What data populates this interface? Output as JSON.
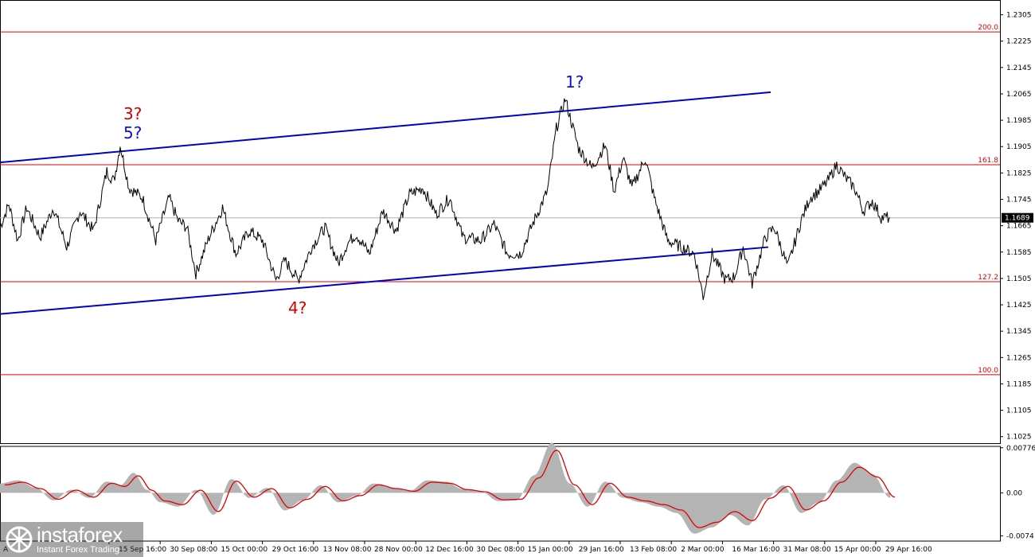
{
  "chart_data": [
    {
      "type": "line",
      "panel": "price",
      "price_axis": {
        "ticks": [
          "1.2305",
          "1.2225",
          "1.2145",
          "1.2065",
          "1.1985",
          "1.1905",
          "1.1825",
          "1.1745",
          "1.1665",
          "1.1585",
          "1.1505",
          "1.1425",
          "1.1345",
          "1.1265",
          "1.1185",
          "1.1105",
          "1.1025"
        ],
        "range": [
          1.1005,
          1.2345
        ]
      },
      "current_price": {
        "value": 1.1689,
        "label": "1.1689"
      },
      "time_axis": {
        "ticks": [
          "15 Sep 16:00",
          "30 Sep 08:00",
          "15 Oct 00:00",
          "29 Oct 16:00",
          "13 Nov 08:00",
          "28 Nov 00:00",
          "12 Dec 16:00",
          "30 Dec 08:00",
          "15 Jan 00:00",
          "29 Jan 16:00",
          "13 Feb 08:00",
          "2 Mar 00:00",
          "16 Mar 16:00",
          "31 Mar 08:00",
          "15 Apr 00:00",
          "29 Apr 16:00"
        ],
        "first_partial": "A"
      },
      "fib_levels": [
        {
          "label": "200.0",
          "value": 1.2253
        },
        {
          "label": "161.8",
          "value": 1.185
        },
        {
          "label": "127.2",
          "value": 1.1495
        },
        {
          "label": "100.0",
          "value": 1.1213
        }
      ],
      "wave_labels": [
        {
          "text": "3?",
          "color": "#d00000",
          "anchor": "upper"
        },
        {
          "text": "5?",
          "color": "#1010d0",
          "anchor": "upper"
        },
        {
          "text": "4?",
          "color": "#d00000",
          "anchor": "lower"
        },
        {
          "text": "1?",
          "color": "#1010d0",
          "anchor": "upper"
        }
      ],
      "channel_color": "#0000c8",
      "series": [
        {
          "t": [
            0,
            0.01,
            0.02,
            0.03,
            0.045,
            0.06,
            0.075,
            0.09,
            0.105,
            0.12,
            0.128,
            0.135,
            0.145,
            0.16,
            0.175,
            0.19,
            0.2,
            0.21,
            0.22,
            0.235,
            0.25,
            0.265,
            0.28,
            0.295,
            0.31,
            0.32,
            0.335,
            0.35,
            0.365,
            0.38,
            0.39,
            0.4,
            0.415,
            0.43,
            0.445,
            0.46,
            0.475,
            0.49,
            0.505,
            0.52,
            0.54,
            0.555,
            0.57,
            0.585,
            0.6,
            0.615,
            0.625,
            0.635,
            0.65,
            0.665,
            0.68,
            0.69,
            0.7,
            0.71,
            0.725,
            0.735,
            0.75,
            0.765,
            0.78,
            0.79,
            0.8,
            0.815,
            0.825,
            0.835,
            0.845,
            0.86,
            0.87,
            0.885,
            0.9,
            0.91,
            0.92,
            0.93,
            0.94,
            0.95,
            0.96,
            0.97,
            0.98,
            0.99,
            1.0
          ],
          "price": [
            1.166,
            1.173,
            1.162,
            1.172,
            1.163,
            1.172,
            1.16,
            1.171,
            1.165,
            1.183,
            1.18,
            1.191,
            1.178,
            1.175,
            1.162,
            1.175,
            1.168,
            1.166,
            1.152,
            1.163,
            1.172,
            1.158,
            1.165,
            1.162,
            1.15,
            1.156,
            1.15,
            1.16,
            1.166,
            1.155,
            1.161,
            1.164,
            1.158,
            1.171,
            1.165,
            1.176,
            1.178,
            1.17,
            1.175,
            1.163,
            1.162,
            1.167,
            1.158,
            1.158,
            1.168,
            1.177,
            1.196,
            1.205,
            1.19,
            1.184,
            1.191,
            1.177,
            1.187,
            1.178,
            1.187,
            1.175,
            1.162,
            1.16,
            1.158,
            1.145,
            1.158,
            1.15,
            1.151,
            1.16,
            1.149,
            1.163,
            1.166,
            1.154,
            1.168,
            1.175,
            1.177,
            1.18,
            1.185,
            1.181,
            1.178,
            1.171,
            1.174,
            1.169,
            1.1689
          ]
        }
      ]
    },
    {
      "type": "area",
      "panel": "oscillator",
      "axis": {
        "ticks": [
          "0.00776",
          "0.00",
          "-0.0074"
        ],
        "range": [
          -0.0083,
          0.008
        ]
      },
      "series": [
        {
          "t": [
            0,
            0.02,
            0.04,
            0.06,
            0.08,
            0.1,
            0.12,
            0.135,
            0.15,
            0.165,
            0.18,
            0.2,
            0.22,
            0.24,
            0.26,
            0.28,
            0.3,
            0.32,
            0.34,
            0.36,
            0.38,
            0.4,
            0.42,
            0.44,
            0.46,
            0.48,
            0.5,
            0.52,
            0.54,
            0.56,
            0.58,
            0.6,
            0.62,
            0.64,
            0.66,
            0.68,
            0.7,
            0.72,
            0.74,
            0.76,
            0.78,
            0.8,
            0.82,
            0.84,
            0.86,
            0.88,
            0.9,
            0.92,
            0.94,
            0.96,
            0.98,
            1.0
          ],
          "values": [
            0.0015,
            0.002,
            0.0008,
            -0.0012,
            0.0005,
            -0.0008,
            0.0018,
            0.0012,
            0.0032,
            0.0005,
            -0.0015,
            -0.0022,
            0.0005,
            -0.0035,
            0.0022,
            -0.0008,
            0.0008,
            -0.0028,
            -0.0012,
            0.0012,
            -0.0015,
            -0.0005,
            0.0015,
            0.0008,
            0.0003,
            0.002,
            0.0018,
            0.0006,
            0.0002,
            -0.0013,
            -0.0012,
            0.0028,
            0.008,
            0.0015,
            -0.0022,
            0.0018,
            -0.0008,
            -0.0015,
            -0.0022,
            -0.0032,
            -0.0065,
            -0.0055,
            -0.0035,
            -0.0052,
            -0.001,
            0.0012,
            -0.0032,
            -0.0015,
            0.002,
            0.0048,
            0.003,
            -0.0008
          ]
        }
      ]
    }
  ],
  "branding": {
    "name": "instaforex",
    "tagline": "Instant Forex Trading"
  }
}
